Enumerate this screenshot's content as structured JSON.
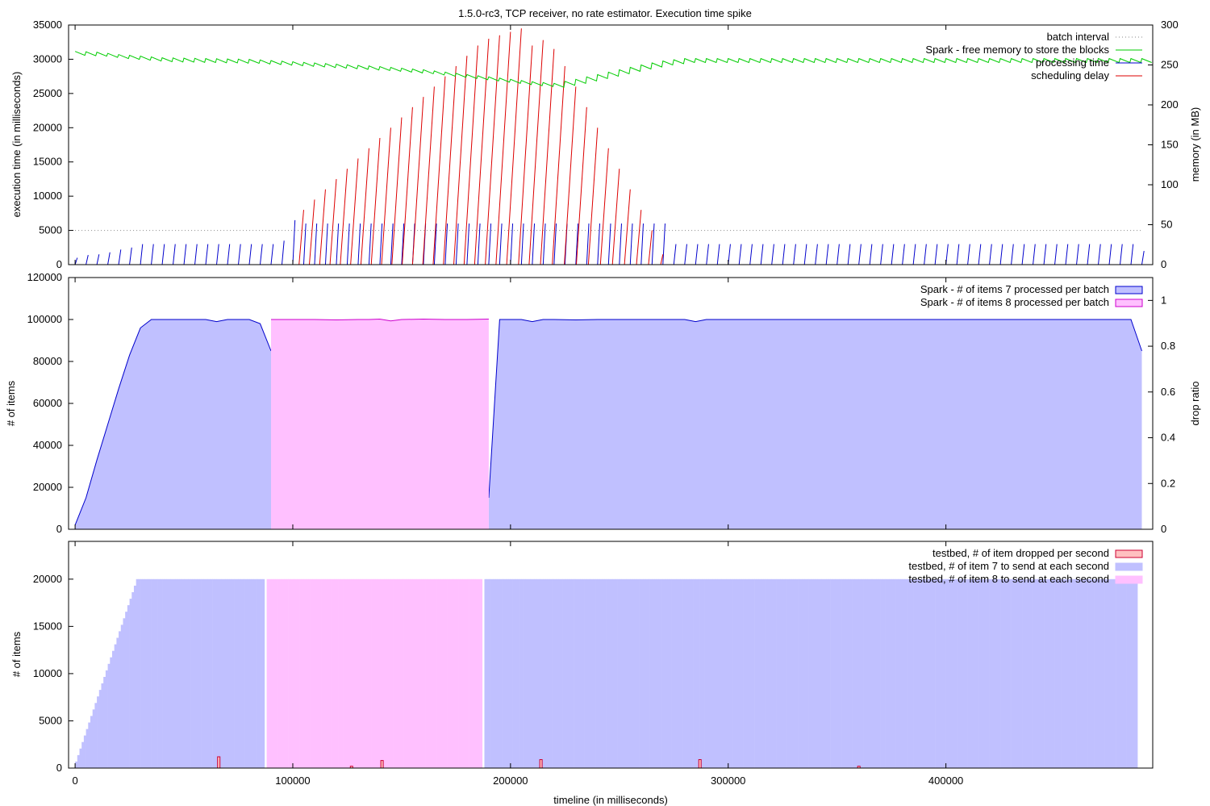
{
  "chart_data": [
    {
      "type": "line",
      "title": "1.5.0-rc3, TCP receiver, no rate estimator. Execution time spike",
      "xlabel": "",
      "ylabel": "execution time (in milliseconds)",
      "y2label": "memory (in MB)",
      "xlim": [
        -3000,
        495000
      ],
      "ylim": [
        0,
        35000
      ],
      "y2lim": [
        0,
        300
      ],
      "yticks": [
        0,
        5000,
        10000,
        15000,
        20000,
        25000,
        30000,
        35000
      ],
      "y2ticks": [
        0,
        50,
        100,
        150,
        200,
        250,
        300
      ],
      "legend_position": "top-right",
      "batch_interval_ms": 5000,
      "series": [
        {
          "name": "batch interval",
          "color": "#888888",
          "style": "dotted"
        },
        {
          "name": "Spark - free memory to store the blocks",
          "color": "#00cc00",
          "axis": "y2",
          "x": [
            0,
            10000,
            20000,
            40000,
            60000,
            80000,
            100000,
            120000,
            140000,
            160000,
            180000,
            200000,
            210000,
            220000,
            230000,
            240000,
            250000,
            260000,
            270000,
            280000,
            300000,
            350000,
            400000,
            450000,
            490000
          ],
          "values": [
            265,
            264,
            261,
            257,
            256,
            255,
            252,
            249,
            246,
            242,
            236,
            230,
            227,
            225,
            230,
            236,
            242,
            248,
            253,
            256,
            256,
            256,
            256,
            256,
            256
          ]
        },
        {
          "name": "processing time",
          "color": "#0000cc",
          "x": [
            0,
            5000,
            10000,
            15000,
            20000,
            25000,
            30000,
            35000,
            40000,
            45000,
            50000,
            55000,
            60000,
            65000,
            70000,
            75000,
            80000,
            85000,
            90000,
            95000,
            100000,
            105000,
            110000,
            115000,
            120000,
            125000,
            130000,
            135000,
            140000,
            145000,
            150000,
            155000,
            160000,
            165000,
            170000,
            175000,
            180000,
            185000,
            190000,
            195000,
            200000,
            205000,
            210000,
            215000,
            220000,
            225000,
            230000,
            235000,
            240000,
            245000,
            250000,
            255000,
            260000,
            265000,
            270000,
            275000,
            280000,
            285000,
            290000,
            295000,
            300000,
            305000,
            310000,
            315000,
            320000,
            325000,
            330000,
            335000,
            340000,
            345000,
            350000,
            355000,
            360000,
            365000,
            370000,
            375000,
            380000,
            385000,
            390000,
            395000,
            400000,
            405000,
            410000,
            415000,
            420000,
            425000,
            430000,
            435000,
            440000,
            445000,
            450000,
            455000,
            460000,
            465000,
            470000,
            475000,
            480000,
            485000,
            490000
          ],
          "values": [
            1000,
            1400,
            1500,
            1800,
            2200,
            2500,
            3000,
            3000,
            3000,
            3000,
            3000,
            3000,
            3000,
            3000,
            3000,
            3000,
            3000,
            3000,
            3000,
            3500,
            6500,
            6000,
            6000,
            6000,
            6000,
            6000,
            6000,
            6000,
            6000,
            6000,
            6000,
            6000,
            6000,
            6000,
            6000,
            6000,
            6000,
            6000,
            6000,
            6000,
            6000,
            6000,
            6000,
            6000,
            6000,
            6000,
            6000,
            6000,
            6000,
            6000,
            6000,
            6000,
            6000,
            6000,
            6000,
            3000,
            3000,
            3000,
            3000,
            3000,
            3000,
            3000,
            3000,
            3000,
            3000,
            3000,
            3000,
            3000,
            3000,
            3000,
            3000,
            3000,
            3000,
            3000,
            3000,
            3000,
            3000,
            3000,
            3000,
            3000,
            3000,
            3000,
            3000,
            3000,
            3000,
            3000,
            3000,
            3000,
            3000,
            3000,
            3000,
            3000,
            3000,
            3000,
            3000,
            3000,
            3000,
            3000,
            2000
          ]
        },
        {
          "name": "scheduling delay",
          "color": "#dd0000",
          "x": [
            105000,
            110000,
            115000,
            120000,
            125000,
            130000,
            135000,
            140000,
            145000,
            150000,
            155000,
            160000,
            165000,
            170000,
            175000,
            180000,
            185000,
            190000,
            195000,
            200000,
            205000,
            210000,
            215000,
            220000,
            225000,
            230000,
            235000,
            240000,
            245000,
            250000,
            255000,
            260000,
            265000,
            270000
          ],
          "values": [
            8000,
            9500,
            11000,
            12500,
            14000,
            15500,
            17000,
            18500,
            20000,
            21500,
            23000,
            24500,
            26000,
            27500,
            29000,
            30500,
            32000,
            33000,
            33500,
            34000,
            34500,
            32000,
            32800,
            31500,
            29000,
            26000,
            23000,
            20000,
            17000,
            14000,
            11000,
            8000,
            5000,
            1500
          ]
        }
      ]
    },
    {
      "type": "area",
      "xlabel": "",
      "ylabel": "# of items",
      "y2label": "drop ratio",
      "xlim": [
        -3000,
        495000
      ],
      "ylim": [
        0,
        120000
      ],
      "y2lim": [
        0,
        1.1
      ],
      "yticks": [
        0,
        20000,
        40000,
        60000,
        80000,
        100000,
        120000
      ],
      "y2ticks": [
        0,
        0.2,
        0.4,
        0.6,
        0.8,
        1
      ],
      "legend_position": "top-right",
      "series": [
        {
          "name": "Spark - # of items 7 processed per batch",
          "fill": "#c0c0ff",
          "stroke": "#0000cc",
          "segments": [
            {
              "x": [
                0,
                5000,
                10000,
                15000,
                20000,
                25000,
                30000,
                35000,
                40000,
                45000,
                50000,
                55000,
                60000,
                65000,
                70000,
                75000,
                80000,
                85000,
                90000
              ],
              "values": [
                2000,
                15000,
                33000,
                50000,
                67000,
                83000,
                96000,
                100000,
                100000,
                100000,
                100000,
                100000,
                100000,
                99000,
                100000,
                100000,
                100000,
                98000,
                85000
              ]
            },
            {
              "x": [
                190000,
                195000,
                200000,
                205000,
                210000,
                215000,
                220000,
                230000,
                240000,
                260000,
                280000,
                285000,
                290000,
                300000,
                350000,
                400000,
                450000,
                485000,
                490000
              ],
              "values": [
                15000,
                100000,
                100000,
                100000,
                99000,
                100000,
                100000,
                99800,
                100000,
                100000,
                100000,
                99000,
                100000,
                100000,
                100000,
                100000,
                100000,
                100000,
                85000
              ]
            }
          ]
        },
        {
          "name": "Spark - # of items 8 processed per batch",
          "fill": "#ffc0ff",
          "stroke": "#cc00cc",
          "segments": [
            {
              "x": [
                90000,
                100000,
                110000,
                120000,
                130000,
                135000,
                140000,
                145000,
                150000,
                160000,
                170000,
                180000,
                190000
              ],
              "values": [
                100000,
                100000,
                100000,
                99800,
                100000,
                100000,
                100200,
                99300,
                100000,
                100200,
                100000,
                100000,
                100200
              ]
            }
          ]
        }
      ]
    },
    {
      "type": "bar",
      "xlabel": "timeline (in milliseconds)",
      "ylabel": "# of items",
      "xlim": [
        -3000,
        495000
      ],
      "ylim": [
        0,
        24000
      ],
      "yticks": [
        0,
        5000,
        10000,
        15000,
        20000
      ],
      "xticks": [
        0,
        100000,
        200000,
        300000,
        400000
      ],
      "legend_position": "top-right",
      "series": [
        {
          "name": "testbed, # of item dropped per second",
          "fill": "#ffc0c0",
          "stroke": "#cc0033",
          "x": [
            66000,
            127000,
            141000,
            214000,
            287000,
            360000
          ],
          "values": [
            1200,
            200,
            800,
            900,
            900,
            200
          ]
        },
        {
          "name": "testbed, # of item 7 to send at each second",
          "fill": "#c0c0ff",
          "stroke": "#c0c0ff",
          "ramp_end_x": 28000,
          "ranges": [
            [
              0,
              87000
            ],
            [
              188000,
              488000
            ]
          ],
          "plateau": 20000
        },
        {
          "name": "testbed, # of item 8 to send at each second",
          "fill": "#ffc0ff",
          "stroke": "#ffc0ff",
          "ranges": [
            [
              88000,
              187000
            ]
          ],
          "plateau": 20000
        }
      ]
    }
  ]
}
